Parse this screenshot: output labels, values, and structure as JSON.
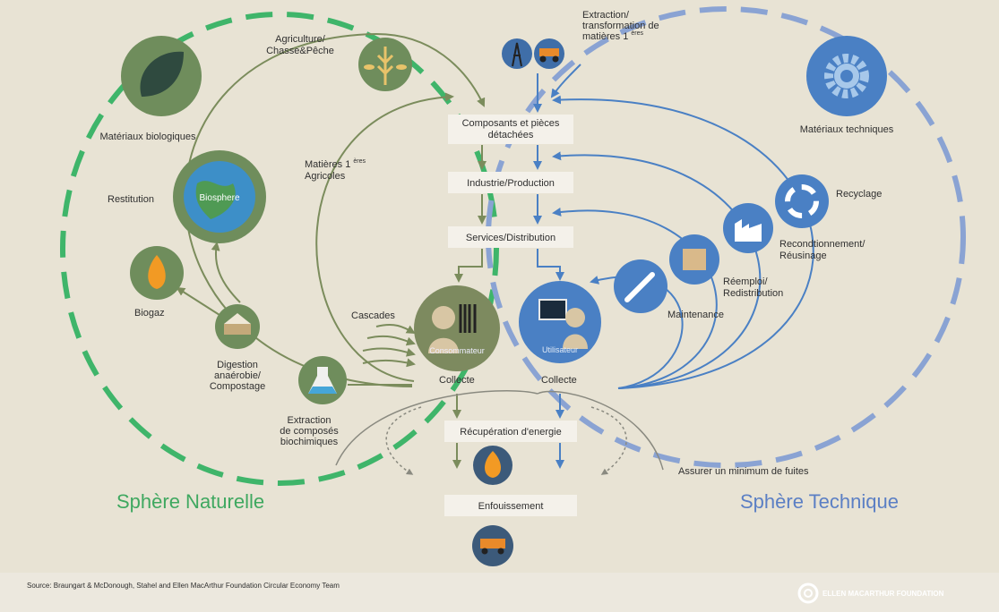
{
  "natural": {
    "title": "Sphère Naturelle",
    "biological_materials": "Matériaux biologiques",
    "agriculture": [
      "Agriculture/",
      "Chasse&Pêche"
    ],
    "raw_materials": {
      "lines": [
        "Matières 1",
        "Agricoles"
      ],
      "sup": "ères"
    },
    "restitution": "Restitution",
    "biosphere": "Biosphere",
    "biogas": "Biogaz",
    "digestion": [
      "Digestion",
      "anaérobie/",
      "Compostage"
    ],
    "extraction": [
      "Extraction",
      "de composés",
      "biochimiques"
    ],
    "cascades": "Cascades",
    "consumer": "Consommateur",
    "collection": "Collecte"
  },
  "technical": {
    "title": "Sphère Technique",
    "extraction": {
      "lines": [
        "Extraction/",
        "transformation de",
        "matières 1"
      ],
      "sup": "ères"
    },
    "technical_materials": "Matériaux techniques",
    "recycling": "Recyclage",
    "remanufacturing": [
      "Recondtionnement/",
      "Réusinage"
    ],
    "reuse": [
      "Réemploi/",
      "Redistribution"
    ],
    "maintenance": "Maintenance",
    "user": "Utilisateur",
    "collection": "Collecte"
  },
  "flow": {
    "components": [
      "Composants et pièces",
      "détachées"
    ],
    "production": "Industrie/Production",
    "distribution": "Services/Distribution",
    "energy_recovery": "Récupération d'energie",
    "landfill": "Enfouissement",
    "leakage": "Assurer un minimum de fuites"
  },
  "footer": {
    "source": "Source: Braungart & McDonough, Stahel and Ellen MacArthur Foundation Circular Economy Team",
    "logo": "ELLEN MACARTHUR FOUNDATION"
  }
}
